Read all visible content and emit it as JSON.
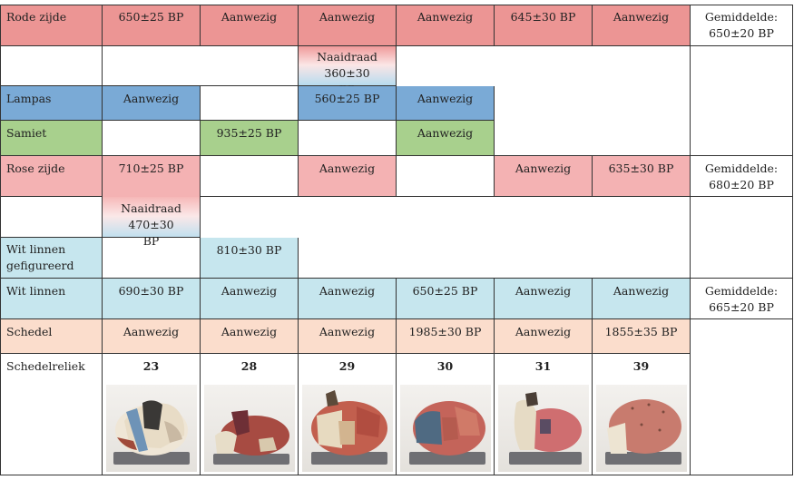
{
  "rows": {
    "rode_zijde": {
      "label": "Rode zijde",
      "cells": [
        "650±25 BP",
        "Aanwezig",
        "Aanwezig",
        "Aanwezig",
        "645±30 BP",
        "Aanwezig"
      ],
      "summary": "Gemiddelde: 650±20 BP"
    },
    "naaidraad1": {
      "value": "Naaidraad 360±30 BP"
    },
    "lampas": {
      "label": "Lampas",
      "cells": [
        "Aanwezig",
        "",
        "560±25 BP",
        "Aanwezig"
      ]
    },
    "samiet": {
      "label": "Samiet",
      "cells": [
        "",
        "935±25 BP",
        "",
        "Aanwezig"
      ]
    },
    "rose_zijde": {
      "label": "Rose zijde",
      "cells": [
        "710±25 BP",
        "",
        "Aanwezig",
        "",
        "Aanwezig",
        "635±30 BP"
      ],
      "summary": "Gemiddelde: 680±20 BP"
    },
    "naaidraad2": {
      "value": "Naaidraad 470±30 BP"
    },
    "wit_linnen_gef": {
      "label": "Wit linnen gefigureerd",
      "cells": [
        "",
        "810±30 BP"
      ]
    },
    "wit_linnen": {
      "label": "Wit linnen",
      "cells": [
        "690±30 BP",
        "Aanwezig",
        "Aanwezig",
        "650±25 BP",
        "Aanwezig",
        "Aanwezig"
      ],
      "summary": "Gemiddelde: 665±20 BP"
    },
    "schedel": {
      "label": "Schedel",
      "cells": [
        "Aanwezig",
        "Aanwezig",
        "Aanwezig",
        "1985±30 BP",
        "Aanwezig",
        "1855±35 BP"
      ]
    },
    "schedelreliek": {
      "label": "Schedelreliek",
      "numbers": [
        "23",
        "28",
        "29",
        "30",
        "31",
        "39"
      ]
    }
  },
  "colors": {
    "rode_zijde": "#ec9594",
    "lampas": "#7aaad6",
    "samiet": "#a8d08d",
    "rose_zijde": "#f4b2b3",
    "wit_linnen": "#c6e6ee",
    "schedel": "#fbddcc"
  },
  "photos": [
    "skull-relic-23",
    "skull-relic-28",
    "skull-relic-29",
    "skull-relic-30",
    "skull-relic-31",
    "skull-relic-39"
  ]
}
